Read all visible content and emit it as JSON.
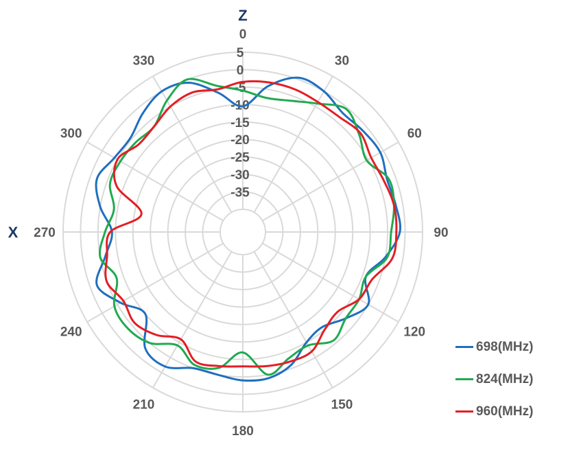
{
  "chart_data": {
    "type": "radar",
    "axis_labels": {
      "vertical": "Z",
      "horizontal": "X"
    },
    "angle_ticks": [
      "0",
      "30",
      "60",
      "90",
      "120",
      "150",
      "180",
      "210",
      "240",
      "270",
      "300",
      "330"
    ],
    "radial_ticks": [
      "5",
      "0",
      "-5",
      "-10",
      "-15",
      "-20",
      "-25",
      "-30",
      "-35"
    ],
    "radial_range": [
      -40,
      5
    ],
    "angular_range_deg": [
      0,
      360
    ],
    "grid": true,
    "legend_position": "right",
    "series": [
      {
        "name": "698(MHz)",
        "color": "#1f6fbe",
        "points": [
          [
            0,
            -10.5
          ],
          [
            10,
            -4
          ],
          [
            20,
            0.5
          ],
          [
            30,
            0
          ],
          [
            40,
            -2
          ],
          [
            50,
            -1.5
          ],
          [
            60,
            -1
          ],
          [
            70,
            -2.5
          ],
          [
            80,
            -2
          ],
          [
            90,
            -1.5
          ],
          [
            100,
            -5
          ],
          [
            110,
            -9
          ],
          [
            120,
            -5
          ],
          [
            130,
            -8
          ],
          [
            140,
            -11
          ],
          [
            150,
            -10
          ],
          [
            160,
            -6
          ],
          [
            170,
            -4
          ],
          [
            180,
            -4
          ],
          [
            190,
            -5
          ],
          [
            200,
            -5
          ],
          [
            210,
            -2
          ],
          [
            220,
            -3
          ],
          [
            230,
            -10
          ],
          [
            240,
            -6
          ],
          [
            250,
            -2
          ],
          [
            260,
            -6.5
          ],
          [
            270,
            -9
          ],
          [
            280,
            -5
          ],
          [
            290,
            -2
          ],
          [
            300,
            -4
          ],
          [
            310,
            -4.5
          ],
          [
            320,
            -2
          ],
          [
            330,
            0
          ],
          [
            340,
            -1
          ],
          [
            350,
            -6
          ],
          [
            360,
            -10.5
          ]
        ]
      },
      {
        "name": "824(MHz)",
        "color": "#21a950",
        "points": [
          [
            0,
            -6
          ],
          [
            10,
            -7.5
          ],
          [
            20,
            -6.5
          ],
          [
            30,
            -4
          ],
          [
            40,
            -0.5
          ],
          [
            50,
            -3
          ],
          [
            60,
            -5.5
          ],
          [
            70,
            -2
          ],
          [
            80,
            -2.5
          ],
          [
            90,
            -4
          ],
          [
            100,
            -4.5
          ],
          [
            110,
            -9
          ],
          [
            120,
            -8
          ],
          [
            130,
            -8
          ],
          [
            140,
            -6
          ],
          [
            150,
            -9
          ],
          [
            160,
            -8
          ],
          [
            170,
            -5
          ],
          [
            180,
            -12
          ],
          [
            190,
            -7
          ],
          [
            200,
            -6
          ],
          [
            210,
            -9
          ],
          [
            220,
            -5
          ],
          [
            230,
            -3.5
          ],
          [
            240,
            -4
          ],
          [
            250,
            -8
          ],
          [
            260,
            -5
          ],
          [
            270,
            -7
          ],
          [
            280,
            -9
          ],
          [
            290,
            -6
          ],
          [
            300,
            -6
          ],
          [
            310,
            -6.5
          ],
          [
            320,
            -7
          ],
          [
            330,
            -3
          ],
          [
            340,
            0
          ],
          [
            350,
            -4
          ],
          [
            360,
            -6
          ]
        ]
      },
      {
        "name": "960(MHz)",
        "color": "#e31e24",
        "points": [
          [
            0,
            -3.5
          ],
          [
            10,
            -3
          ],
          [
            20,
            -3
          ],
          [
            30,
            -3.5
          ],
          [
            40,
            -3.5
          ],
          [
            50,
            -2.5
          ],
          [
            60,
            -4
          ],
          [
            70,
            -3.5
          ],
          [
            80,
            -2.5
          ],
          [
            90,
            -2.5
          ],
          [
            100,
            -3
          ],
          [
            110,
            -7
          ],
          [
            120,
            -8
          ],
          [
            130,
            -11
          ],
          [
            140,
            -10
          ],
          [
            150,
            -7
          ],
          [
            160,
            -7
          ],
          [
            170,
            -7.5
          ],
          [
            180,
            -8
          ],
          [
            190,
            -7.5
          ],
          [
            200,
            -7
          ],
          [
            210,
            -11
          ],
          [
            220,
            -8
          ],
          [
            230,
            -6
          ],
          [
            240,
            -7
          ],
          [
            250,
            -5
          ],
          [
            260,
            -7
          ],
          [
            270,
            -8.5
          ],
          [
            280,
            -17
          ],
          [
            290,
            -8
          ],
          [
            300,
            -5
          ],
          [
            310,
            -7.5
          ],
          [
            320,
            -7
          ],
          [
            330,
            -5
          ],
          [
            340,
            -4
          ],
          [
            350,
            -5
          ],
          [
            360,
            -3.5
          ]
        ]
      }
    ]
  }
}
